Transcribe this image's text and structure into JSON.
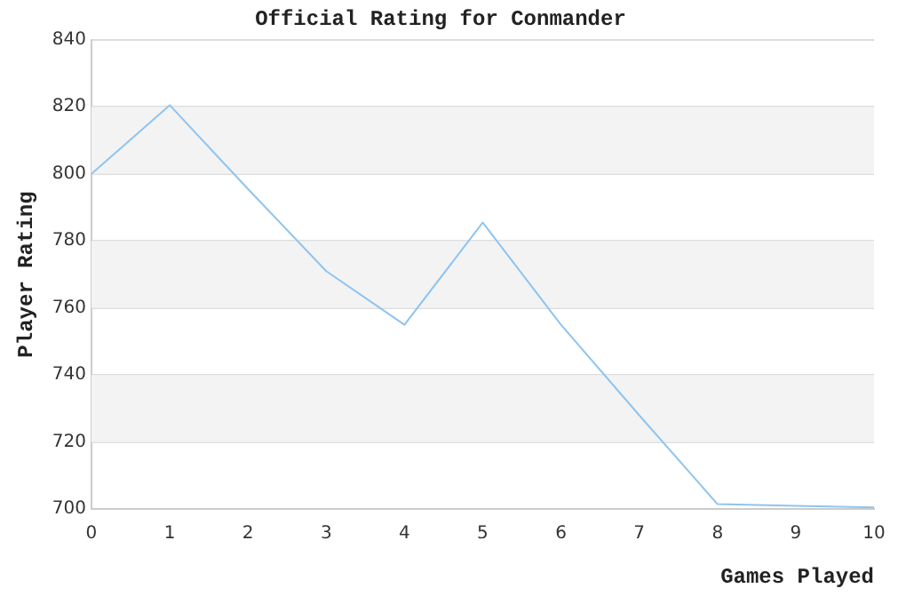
{
  "chart_data": {
    "type": "line",
    "title": "Official Rating for Conmander",
    "xlabel": "Games Played",
    "ylabel": "Player Rating",
    "x": [
      0,
      1,
      2,
      3,
      4,
      5,
      6,
      7,
      8,
      9,
      10
    ],
    "series": [
      {
        "color": "#8ec4f0",
        "values": [
          800,
          820.5,
          795.5,
          771,
          755,
          785.5,
          755,
          728,
          701.5,
          701,
          700.5
        ]
      }
    ],
    "xlim": [
      0,
      10
    ],
    "xticks": [
      0,
      1,
      2,
      3,
      4,
      5,
      6,
      7,
      8,
      9,
      10
    ],
    "ylim": [
      700,
      840
    ],
    "yticks": [
      700,
      720,
      740,
      760,
      780,
      800,
      820,
      840
    ],
    "grid": "y",
    "legend": false,
    "marker": "none",
    "line_style": "solid"
  }
}
